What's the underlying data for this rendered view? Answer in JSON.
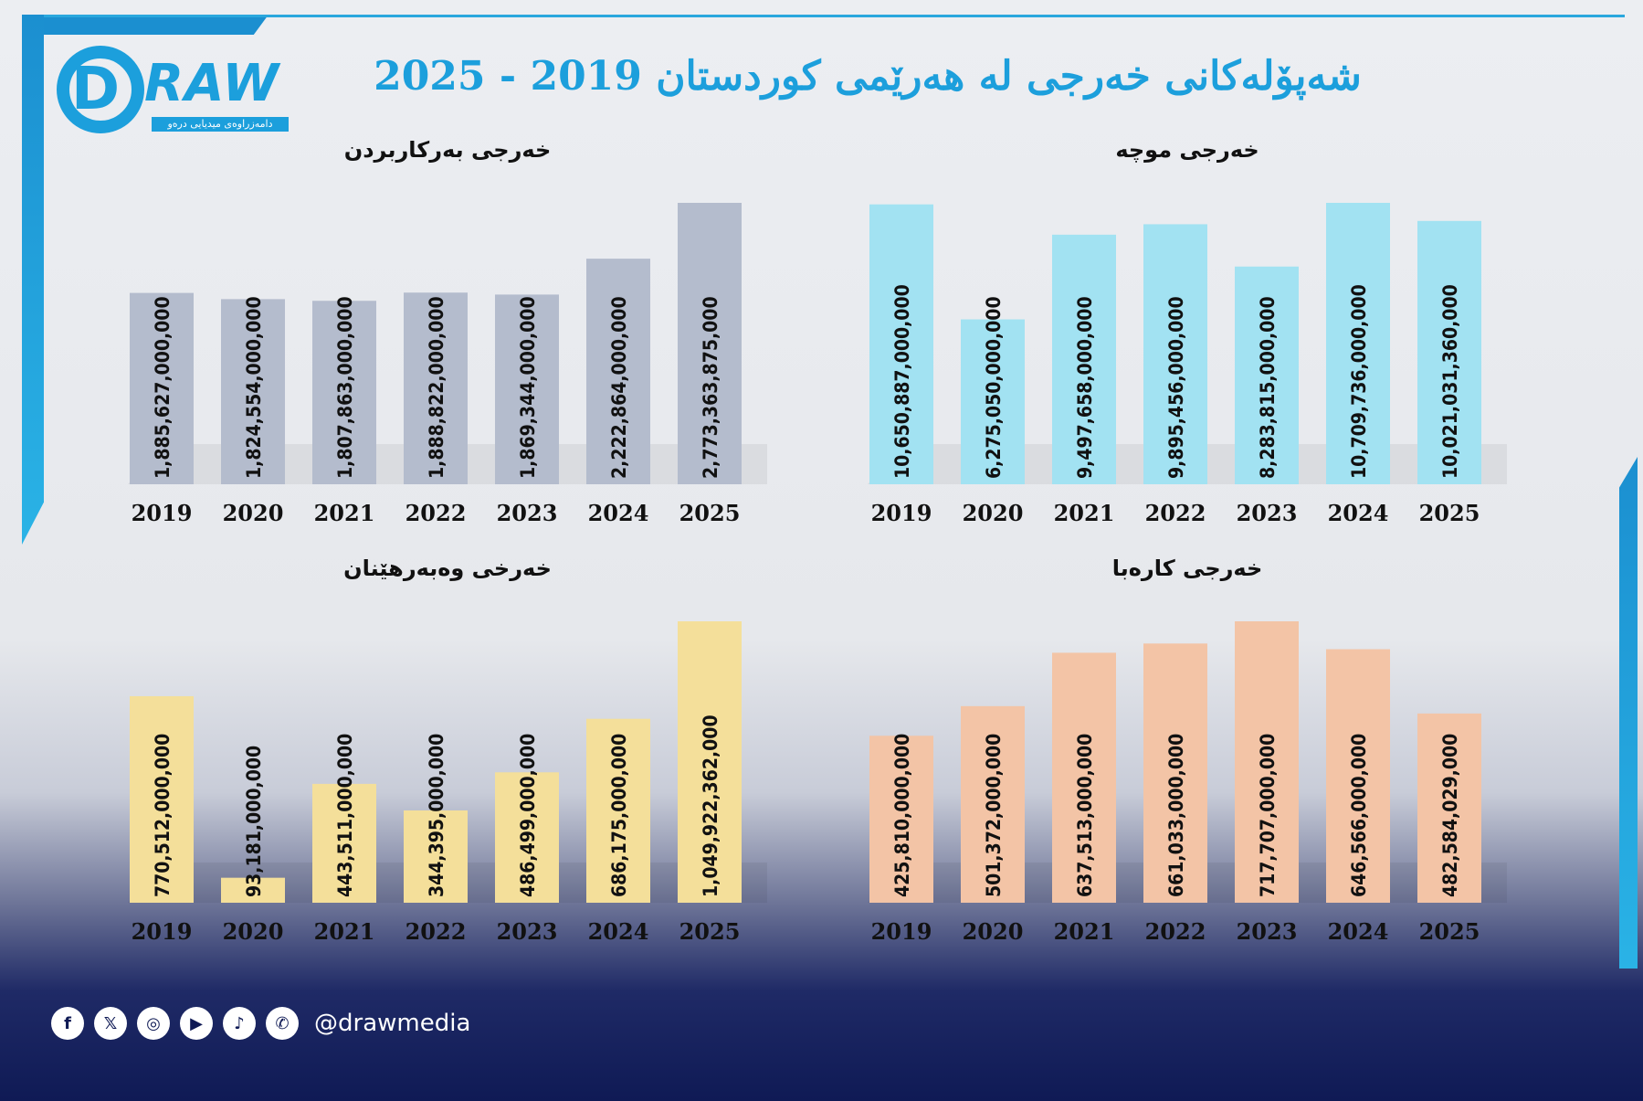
{
  "title": "شەپۆلەکانی خەرجی لە هەرێمی کوردستان 2019 - 2025",
  "logo": {
    "text": "RAW",
    "letter": "D",
    "subtitle": "دامەزراوەی میدیایی درەو"
  },
  "social": {
    "handle": "@drawmedia",
    "icons": [
      "facebook-icon",
      "x-icon",
      "instagram-icon",
      "youtube-icon",
      "tiktok-icon",
      "whatsapp-icon"
    ]
  },
  "chart_data": [
    {
      "id": "operating",
      "type": "bar",
      "title": "خەرجی بەرکاربردن",
      "categories": [
        "2019",
        "2020",
        "2021",
        "2022",
        "2023",
        "2024",
        "2025"
      ],
      "values": [
        1885627000000,
        1824554000000,
        1807863000000,
        1888822000000,
        1869344000000,
        2222864000000,
        2773363875000
      ],
      "labels": [
        "1,885,627,000,000",
        "1,824,554,000,000",
        "1,807,863,000,000",
        "1,888,822,000,000",
        "1,869,344,000,000",
        "2,222,864,000,000",
        "2,773,363,875,000"
      ],
      "color": "#b4bccd",
      "ylim": [
        0,
        2773363875000
      ]
    },
    {
      "id": "salary",
      "type": "bar",
      "title": "خەرجی موچە",
      "categories": [
        "2019",
        "2020",
        "2021",
        "2022",
        "2023",
        "2024",
        "2025"
      ],
      "values": [
        10650887000000,
        6275050000000,
        9497658000000,
        9895456000000,
        8283815000000,
        10709736000000,
        10021031360000
      ],
      "labels": [
        "10,650,887,000,000",
        "6,275,050,000,000",
        "9,497,658,000,000",
        "9,895,456,000,000",
        "8,283,815,000,000",
        "10,709,736,000,000",
        "10,021,031,360,000"
      ],
      "color": "#a2e2f2",
      "ylim": [
        0,
        10709736000000
      ]
    },
    {
      "id": "investment",
      "type": "bar",
      "title": "خەرخی وەبەرهێنان",
      "categories": [
        "2019",
        "2020",
        "2021",
        "2022",
        "2023",
        "2024",
        "2025"
      ],
      "values": [
        770512000000,
        93181000000,
        443511000000,
        344395000000,
        486499000000,
        686175000000,
        1049922362000
      ],
      "labels": [
        "770,512,000,000",
        "93,181,000,000",
        "443,511,000,000",
        "344,395,000,000",
        "486,499,000,000",
        "686,175,000,000",
        "1,049,922,362,000"
      ],
      "color": "#f4df9a",
      "ylim": [
        0,
        1049922362000
      ]
    },
    {
      "id": "electricity",
      "type": "bar",
      "title": "خەرجی کارەبا",
      "categories": [
        "2019",
        "2020",
        "2021",
        "2022",
        "2023",
        "2024",
        "2025"
      ],
      "values": [
        425810000000,
        501372000000,
        637513000000,
        661033000000,
        717707000000,
        646566000000,
        482584029000
      ],
      "labels": [
        "425,810,000,000",
        "501,372,000,000",
        "637,513,000,000",
        "661,033,000,000",
        "717,707,000,000",
        "646,566,000,000",
        "482,584,029,000"
      ],
      "color": "#f3c4a6",
      "ylim": [
        0,
        717707000000
      ]
    }
  ]
}
